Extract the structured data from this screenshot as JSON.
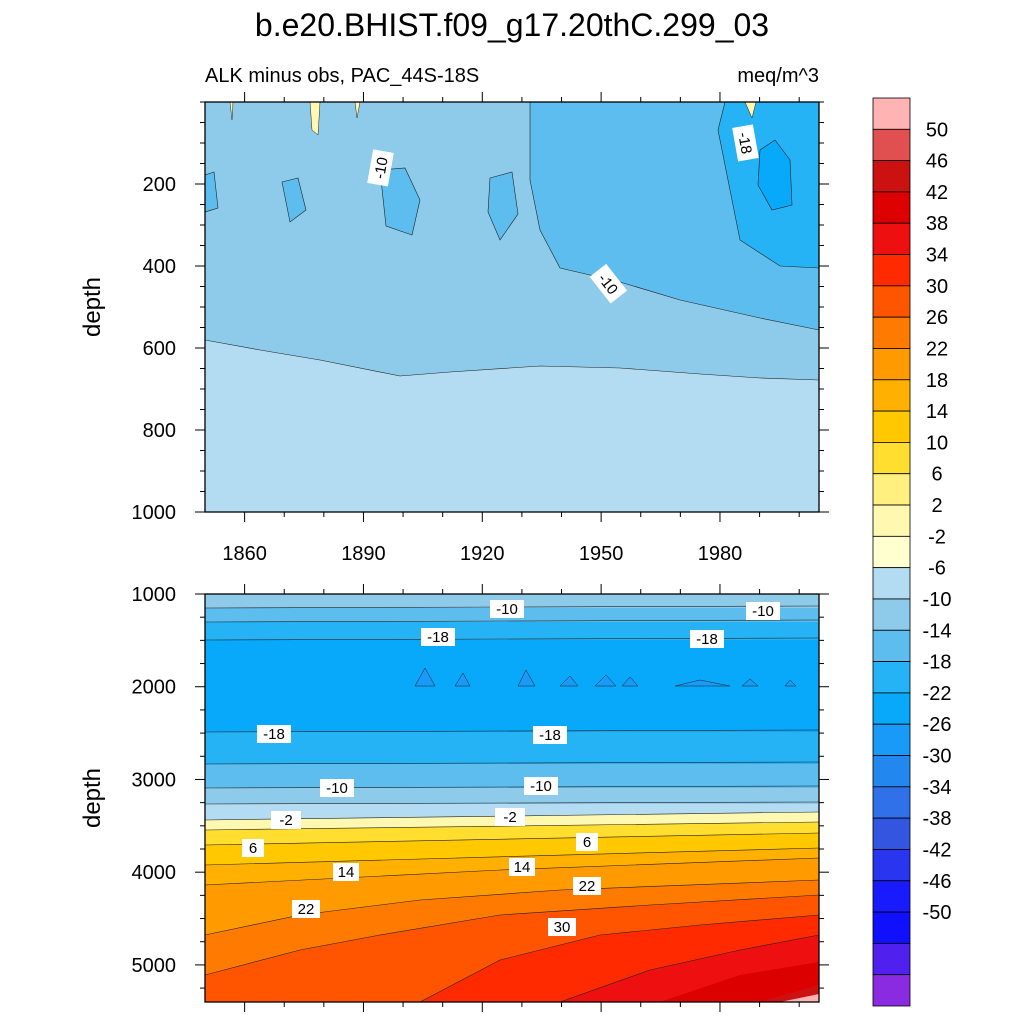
{
  "chart_data": {
    "type": "contour",
    "title": "b.e20.BHIST.f09_g17.20thC.299_03",
    "subtitle_left": "ALK minus obs, PAC_44S-18S",
    "subtitle_right": "meq/m^3",
    "x_label": "",
    "x_range": [
      1850,
      2005
    ],
    "x_ticks": [
      "1860",
      "1890",
      "1920",
      "1950",
      "1980"
    ],
    "colorbar": {
      "levels": [
        "50",
        "46",
        "42",
        "38",
        "34",
        "30",
        "26",
        "22",
        "18",
        "14",
        "10",
        "6",
        "2",
        "-2",
        "-6",
        "-10",
        "-14",
        "-18",
        "-22",
        "-26",
        "-30",
        "-34",
        "-38",
        "-42",
        "-46",
        "-50"
      ],
      "colors": [
        "#ffb3b3",
        "#e05050",
        "#cc1111",
        "#dd0000",
        "#ee1010",
        "#ff2a00",
        "#ff5500",
        "#ff7a00",
        "#ff9a00",
        "#ffb000",
        "#ffc800",
        "#ffde30",
        "#fff080",
        "#fff8b0",
        "#ffffd0",
        "#b3dcf2",
        "#8ecbeb",
        "#5cbdee",
        "#25b3f5",
        "#08a8fa",
        "#1a9af8",
        "#2288f0",
        "#3070e8",
        "#3355e0",
        "#2a35f0",
        "#1a1aff",
        "#1010ff",
        "#5020ee",
        "#8a2be2"
      ]
    },
    "panels": [
      {
        "name": "upper",
        "y_label": "depth",
        "y_range": [
          0,
          1000
        ],
        "y_ticks": [
          "200",
          "400",
          "600",
          "800",
          "1000"
        ],
        "contour_labels": [
          "-10",
          "-10",
          "-18"
        ]
      },
      {
        "name": "lower",
        "y_label": "depth",
        "y_range": [
          1000,
          5400
        ],
        "y_ticks": [
          "1000",
          "2000",
          "3000",
          "4000",
          "5000"
        ],
        "contour_labels": [
          "-10",
          "-10",
          "-18",
          "-18",
          "-18",
          "-18",
          "-10",
          "-10",
          "-2",
          "-2",
          "6",
          "6",
          "14",
          "14",
          "22",
          "22",
          "30"
        ]
      }
    ]
  }
}
